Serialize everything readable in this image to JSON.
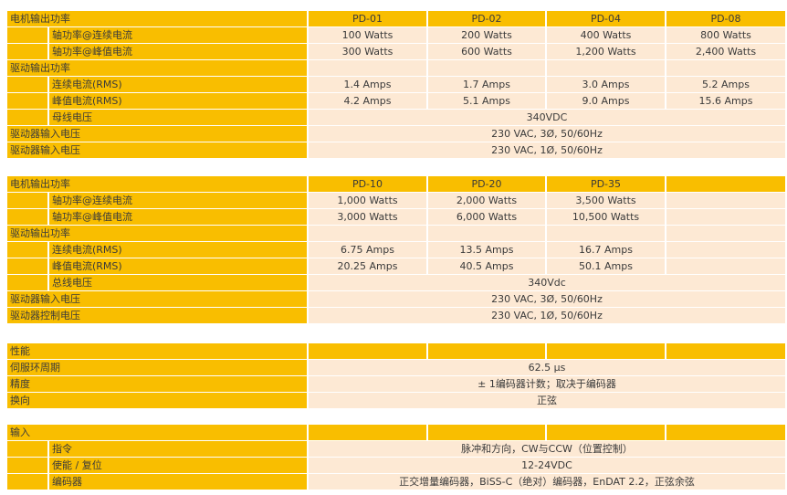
{
  "colors": {
    "header": "#F9BE00",
    "cell": "#FDE9D4"
  },
  "sections": [
    {
      "rows": [
        {
          "type": "header",
          "label": "电机输出功率",
          "cells": [
            "PD-01",
            "PD-02",
            "PD-04",
            "PD-08"
          ]
        },
        {
          "type": "sub",
          "label": "轴功率@连续电流",
          "cells": [
            "100 Watts",
            "200 Watts",
            "400 Watts",
            "800 Watts"
          ]
        },
        {
          "type": "sub",
          "label": "轴功率@峰值电流",
          "cells": [
            "300 Watts",
            "600 Watts",
            "1,200 Watts",
            "2,400 Watts"
          ]
        },
        {
          "type": "main",
          "label": "驱动输出功率",
          "cells": [
            "",
            "",
            "",
            ""
          ]
        },
        {
          "type": "sub",
          "label": "连续电流(RMS)",
          "cells": [
            "1.4 Amps",
            "1.7 Amps",
            "3.0 Amps",
            "5.2 Amps"
          ]
        },
        {
          "type": "sub",
          "label": "峰值电流(RMS)",
          "cells": [
            "4.2 Amps",
            "5.1 Amps",
            "9.0 Amps",
            "15.6 Amps"
          ]
        },
        {
          "type": "sub",
          "label": "母线电压",
          "span": "340VDC"
        },
        {
          "type": "main",
          "label": "驱动器输入电压",
          "span": "230 VAC, 3Ø, 50/60Hz"
        },
        {
          "type": "main",
          "label": "驱动器输入电压",
          "span": "230 VAC, 1Ø, 50/60Hz"
        }
      ]
    },
    {
      "rows": [
        {
          "type": "header",
          "label": "电机输出功率",
          "cells": [
            "PD-10",
            "PD-20",
            "PD-35",
            ""
          ]
        },
        {
          "type": "sub",
          "label": "轴功率@连续电流",
          "cells": [
            "1,000 Watts",
            "2,000 Watts",
            "3,500 Watts",
            ""
          ]
        },
        {
          "type": "sub",
          "label": "轴功率@峰值电流",
          "cells": [
            "3,000 Watts",
            "6,000 Watts",
            "10,500 Watts",
            ""
          ]
        },
        {
          "type": "main",
          "label": "驱动输出功率",
          "cells": [
            "",
            "",
            "",
            ""
          ]
        },
        {
          "type": "sub",
          "label": "连续电流(RMS)",
          "cells": [
            "6.75 Amps",
            "13.5 Amps",
            "16.7 Amps",
            ""
          ]
        },
        {
          "type": "sub",
          "label": "峰值电流(RMS)",
          "cells": [
            "20.25 Amps",
            "40.5 Amps",
            "50.1 Amps",
            ""
          ]
        },
        {
          "type": "sub",
          "label": "总线电压",
          "span": "340Vdc"
        },
        {
          "type": "main",
          "label": "驱动器输入电压",
          "span": "230 VAC, 3Ø, 50/60Hz"
        },
        {
          "type": "main",
          "label": "驱动器控制电压",
          "span": "230 VAC, 1Ø, 50/60Hz"
        }
      ]
    },
    {
      "rows": [
        {
          "type": "header",
          "label": "性能",
          "cells": [
            "",
            "",
            "",
            ""
          ]
        },
        {
          "type": "main",
          "label": "伺服环周期",
          "span": "62.5 μs"
        },
        {
          "type": "main",
          "label": "精度",
          "span": "± 1编码器计数；取决于编码器"
        },
        {
          "type": "main",
          "label": "换向",
          "span": "正弦"
        }
      ]
    },
    {
      "rows": [
        {
          "type": "header",
          "label": "输入",
          "cells": [
            "",
            "",
            "",
            ""
          ]
        },
        {
          "type": "sub",
          "label": "指令",
          "span": "脉冲和方向，CW与CCW（位置控制）"
        },
        {
          "type": "sub",
          "label": "使能 / 复位",
          "span": "12-24VDC"
        },
        {
          "type": "sub",
          "label": "编码器",
          "span": "正交增量编码器，BiSS-C（绝对）编码器，EnDAT 2.2，正弦余弦"
        }
      ]
    }
  ]
}
